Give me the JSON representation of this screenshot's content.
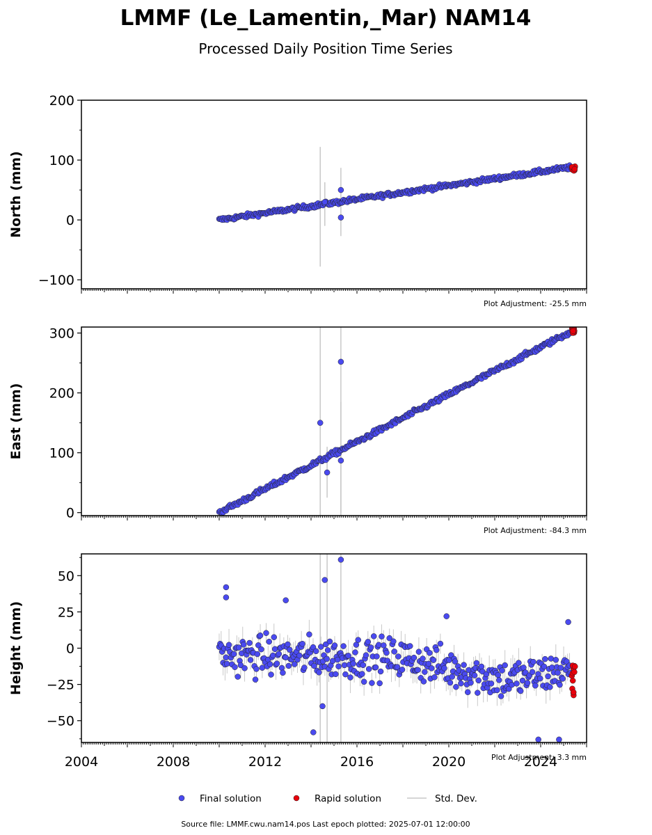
{
  "title": "LMMF (Le_Lamentin,_Mar) NAM14",
  "subtitle": "Processed Daily Position Time Series",
  "legend": {
    "final": "Final solution",
    "rapid": "Rapid solution",
    "std": "Std. Dev."
  },
  "footer": "Source file: LMMF.cwu.nam14.pos  Last epoch plotted: 2025-07-01 12:00:00",
  "colors": {
    "final": "#4a4af0",
    "rapid": "#e8000b",
    "std": "#c8c8c8"
  },
  "chart_data": [
    {
      "type": "scatter",
      "ylabel": "North (mm)",
      "adjustment": "Plot Adjustment: -25.5 mm",
      "xlim": [
        2004,
        2026
      ],
      "ylim": [
        -115,
        200
      ],
      "yticks": [
        -100,
        0,
        100,
        200
      ],
      "ytick_labels": [
        "−100",
        "0",
        "100",
        "200"
      ],
      "series": [
        {
          "name": "Final solution",
          "start": [
            2010.0,
            0
          ],
          "end": [
            2025.3,
            88
          ],
          "noise": 2.5
        },
        {
          "name": "Rapid solution",
          "x_range": [
            2025.35,
            2025.5
          ],
          "y_range": [
            82,
            90
          ]
        }
      ],
      "outliers": [
        [
          2015.3,
          50
        ],
        [
          2015.3,
          4
        ],
        [
          2014.6,
          30
        ]
      ],
      "error_bars": [
        [
          2014.4,
          -78,
          122
        ],
        [
          2015.3,
          -27,
          87
        ],
        [
          2014.6,
          -10,
          63
        ]
      ]
    },
    {
      "type": "scatter",
      "ylabel": "East (mm)",
      "adjustment": "Plot Adjustment: -84.3 mm",
      "xlim": [
        2004,
        2026
      ],
      "ylim": [
        -5,
        310
      ],
      "yticks": [
        0,
        100,
        200,
        300
      ],
      "ytick_labels": [
        "0",
        "100",
        "200",
        "300"
      ],
      "series": [
        {
          "name": "Final solution",
          "start": [
            2010.0,
            0
          ],
          "end": [
            2025.3,
            302
          ],
          "noise": 3
        },
        {
          "name": "Rapid solution",
          "x_range": [
            2025.35,
            2025.5
          ],
          "y_range": [
            300,
            308
          ]
        }
      ],
      "outliers": [
        [
          2014.4,
          150
        ],
        [
          2015.3,
          252
        ],
        [
          2014.7,
          67
        ],
        [
          2015.3,
          87
        ]
      ],
      "error_bars": [
        [
          2014.4,
          -5,
          310
        ],
        [
          2015.3,
          -5,
          310
        ],
        [
          2014.7,
          25,
          110
        ],
        [
          2015.3,
          0,
          185
        ]
      ]
    },
    {
      "type": "scatter",
      "ylabel": "Height (mm)",
      "adjustment": "Plot Adjustment: 3.3 mm",
      "xlim": [
        2004,
        2026
      ],
      "ylim": [
        -65,
        65
      ],
      "yticks": [
        -50,
        -25,
        0,
        25,
        50
      ],
      "ytick_labels": [
        "−50",
        "−25",
        "0",
        "25",
        "50"
      ],
      "xticks": [
        2004,
        2008,
        2012,
        2016,
        2020,
        2024
      ],
      "xtick_labels": [
        "2004",
        "2008",
        "2012",
        "2016",
        "2020",
        "2024"
      ],
      "series": [
        {
          "name": "Final solution",
          "trend": [
            [
              2010.0,
              -5
            ],
            [
              2018.0,
              -7
            ],
            [
              2022.5,
              -22
            ],
            [
              2025.3,
              -15
            ]
          ],
          "noise": 10
        },
        {
          "name": "Rapid solution",
          "x_range": [
            2025.35,
            2025.5
          ],
          "y_range": [
            -34,
            -5
          ]
        }
      ],
      "outliers": [
        [
          2010.3,
          42
        ],
        [
          2010.3,
          35
        ],
        [
          2012.9,
          33
        ],
        [
          2014.6,
          47
        ],
        [
          2015.3,
          61
        ],
        [
          2014.1,
          -58
        ],
        [
          2014.5,
          -40
        ],
        [
          2023.9,
          -63
        ],
        [
          2024.8,
          -63
        ],
        [
          2025.2,
          18
        ],
        [
          2019.9,
          22
        ]
      ],
      "error_bars": [
        [
          2014.4,
          -65,
          65
        ],
        [
          2014.7,
          -65,
          65
        ],
        [
          2015.3,
          -65,
          65
        ]
      ]
    }
  ]
}
